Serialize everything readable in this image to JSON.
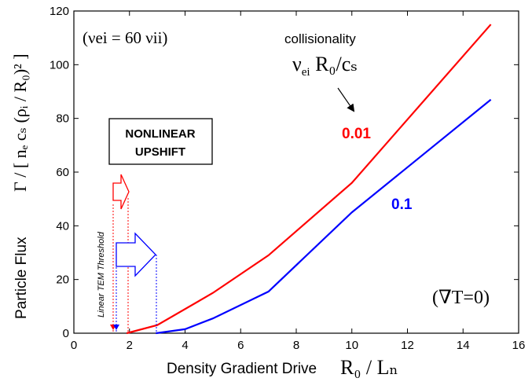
{
  "chart_data": {
    "type": "line",
    "xlabel_text": "Density Gradient Drive",
    "xlabel_math": "R₀ / Lₙ",
    "ylabel_text": "Particle Flux",
    "ylabel_math": "Γ / [ nₑ cₛ (ρᵢ / R₀)² ]",
    "xlim": [
      0,
      16
    ],
    "ylim": [
      0,
      120
    ],
    "xticks": [
      0,
      2,
      4,
      6,
      8,
      10,
      12,
      14,
      16
    ],
    "yticks": [
      0,
      20,
      40,
      60,
      80,
      100,
      120
    ],
    "series": [
      {
        "name": "0.01",
        "color": "#ff0000",
        "x": [
          1.9,
          3,
          5,
          7,
          10,
          15
        ],
        "y": [
          0,
          3,
          15,
          29,
          56,
          115
        ]
      },
      {
        "name": "0.1",
        "color": "#0000ff",
        "x": [
          2.95,
          4,
          5,
          7,
          10,
          15
        ],
        "y": [
          0,
          1.5,
          5.5,
          15.5,
          45,
          87
        ]
      }
    ],
    "annotations": {
      "collision_ratio": "(νei = 60 νii)",
      "collisionality_title": "collisionality",
      "collisionality_expr": "ν",
      "collisionality_sub": "ei",
      "collisionality_rest": " R₀/cₛ",
      "nonlinear_line1": "NONLINEAR",
      "nonlinear_line2": "UPSHIFT",
      "threshold_label": "Linear TEM Threshold",
      "gradT": "(∇T=0)"
    }
  }
}
